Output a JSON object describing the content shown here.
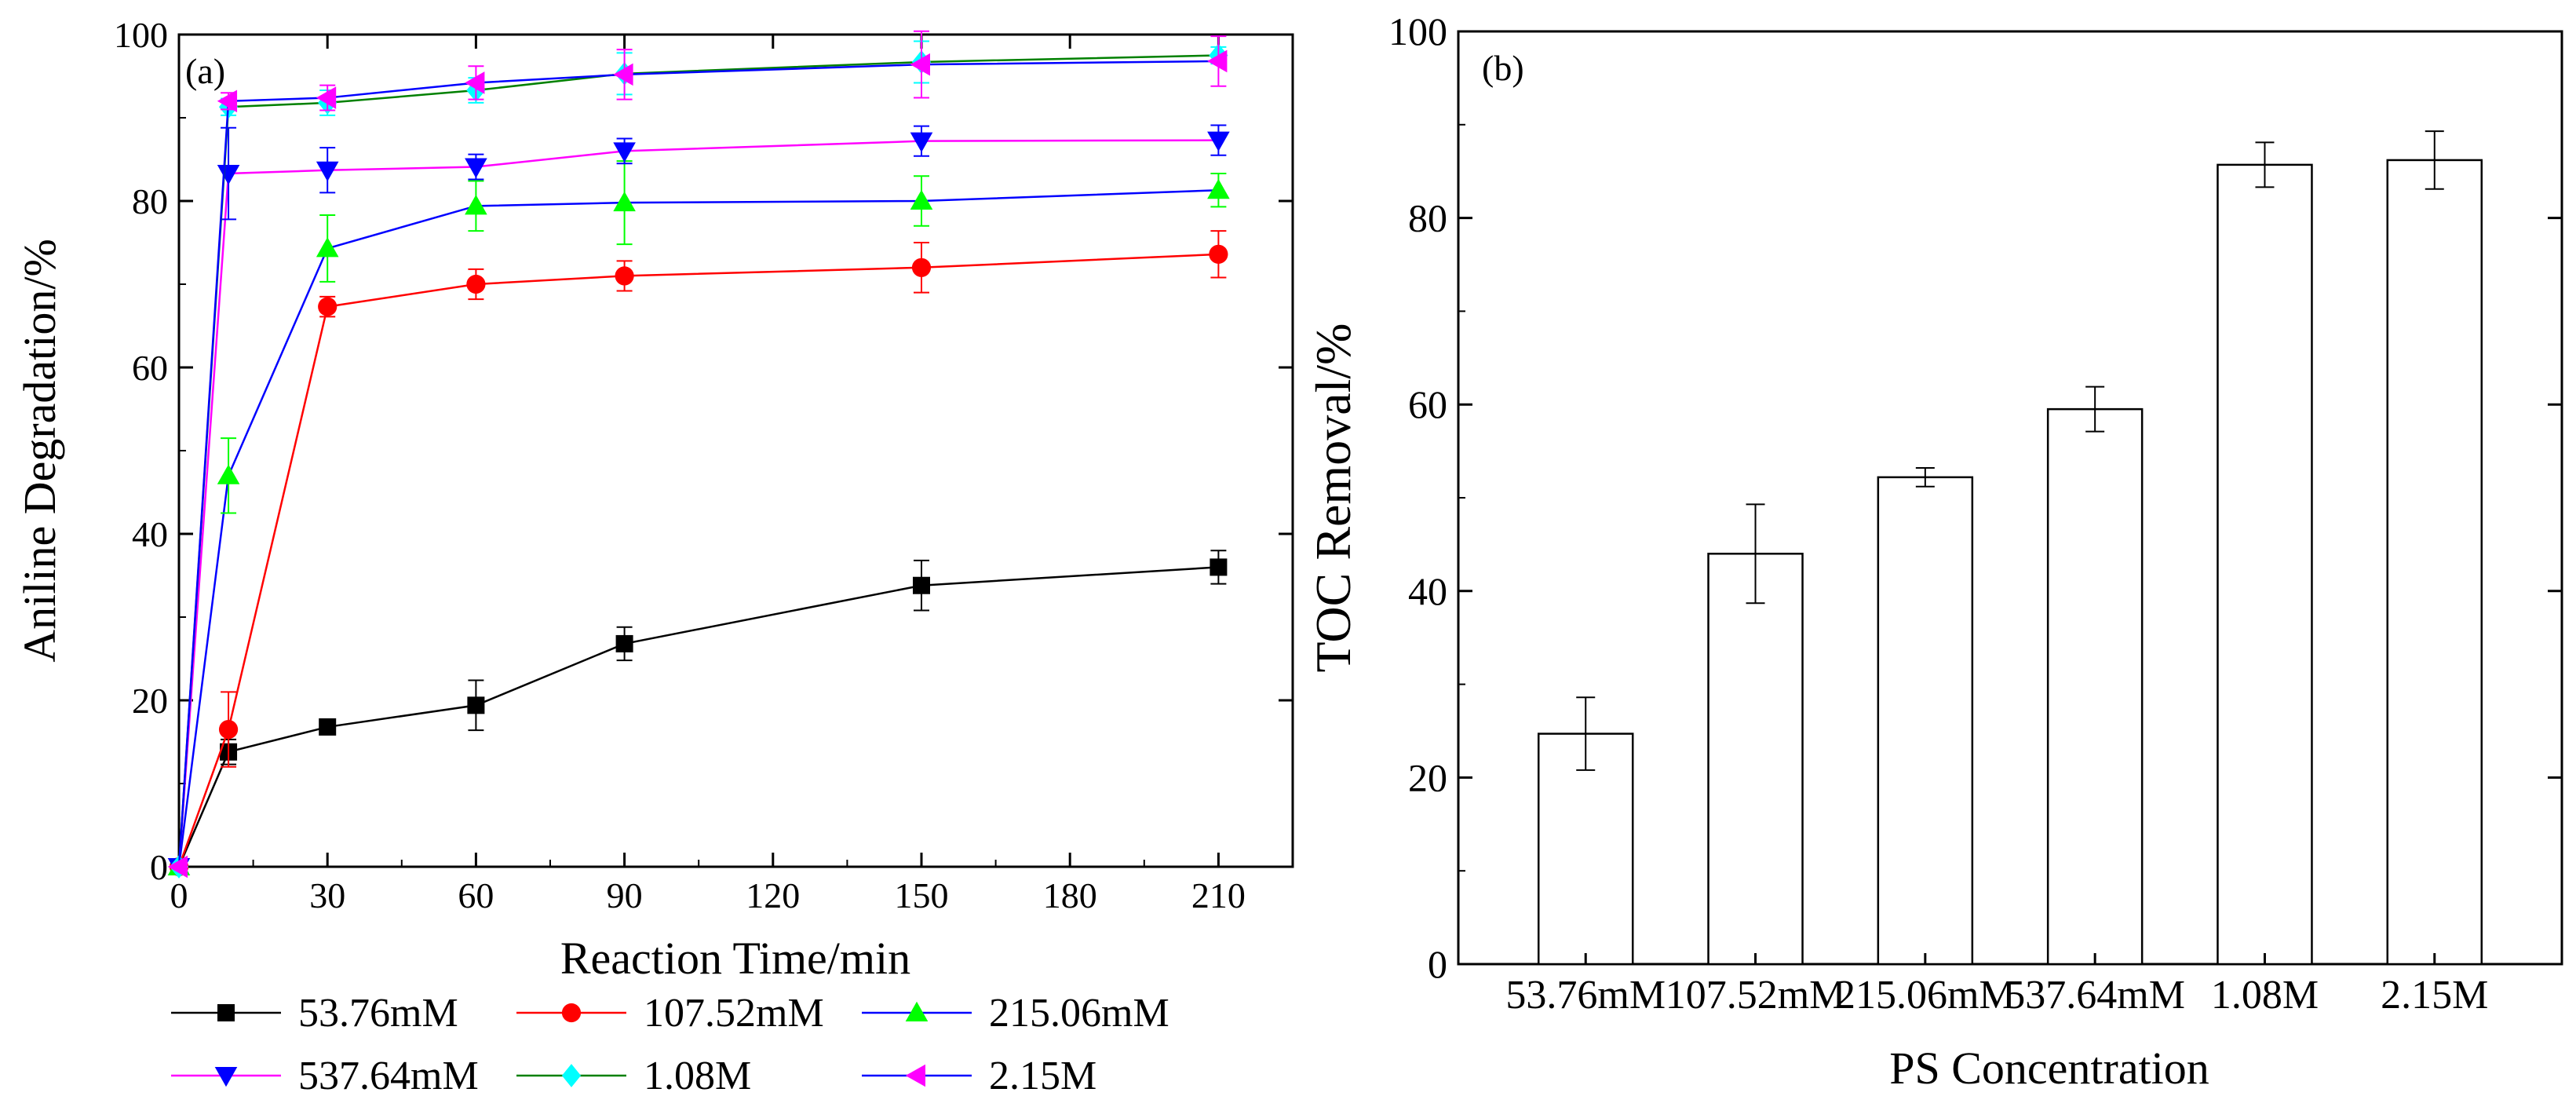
{
  "chart_data": [
    {
      "panel_label": "(a)",
      "type": "line",
      "xlabel": "Reaction Time/min",
      "ylabel": "Aniline Degradation/%",
      "xlim": [
        0,
        225
      ],
      "ylim": [
        0,
        100
      ],
      "x_ticks": [
        0,
        30,
        60,
        90,
        120,
        150,
        180,
        210
      ],
      "y_ticks": [
        0,
        20,
        40,
        60,
        80,
        100
      ],
      "x": [
        0,
        10,
        30,
        60,
        90,
        150,
        210
      ],
      "legend_location": "below",
      "series": [
        {
          "name": "53.76mM",
          "marker": "square",
          "marker_color": "#000000",
          "line_color": "#000000",
          "values": [
            0,
            13.8,
            16.8,
            19.4,
            26.8,
            33.8,
            36.0
          ],
          "errors": [
            0,
            1.5,
            0.8,
            3.0,
            2.0,
            3.0,
            2.0
          ]
        },
        {
          "name": "107.52mM",
          "marker": "circle",
          "marker_color": "#ff0000",
          "line_color": "#ff0000",
          "values": [
            0,
            16.5,
            67.3,
            70.0,
            71.0,
            72.0,
            73.6
          ],
          "errors": [
            0,
            4.5,
            1.2,
            1.8,
            1.8,
            3.0,
            2.8
          ]
        },
        {
          "name": "215.06mM",
          "marker": "triangle-up",
          "marker_color": "#00ff00",
          "line_color": "#0000ff",
          "values": [
            0,
            47.0,
            74.3,
            79.4,
            79.8,
            80.0,
            81.3
          ],
          "errors": [
            0,
            4.5,
            4.0,
            3.0,
            5.0,
            3.0,
            2.0
          ]
        },
        {
          "name": "537.64mM",
          "marker": "triangle-down",
          "marker_color": "#0000ff",
          "line_color": "#ff00ff",
          "values": [
            0,
            83.3,
            83.7,
            84.1,
            86.0,
            87.2,
            87.3
          ],
          "errors": [
            0,
            5.5,
            2.7,
            1.5,
            1.5,
            1.8,
            1.8
          ]
        },
        {
          "name": "1.08M",
          "marker": "diamond",
          "marker_color": "#00ffff",
          "line_color": "#008000",
          "values": [
            0,
            91.3,
            91.8,
            93.3,
            95.3,
            96.7,
            97.5
          ],
          "errors": [
            0,
            1.0,
            1.5,
            1.5,
            2.5,
            2.5,
            1.0
          ]
        },
        {
          "name": "2.15M",
          "marker": "triangle-left",
          "marker_color": "#ff00ff",
          "line_color": "#0000ff",
          "values": [
            0,
            92.0,
            92.4,
            94.2,
            95.2,
            96.4,
            96.8
          ],
          "errors": [
            0,
            1.0,
            1.5,
            2.0,
            3.0,
            4.0,
            3.0
          ]
        }
      ]
    },
    {
      "panel_label": "(b)",
      "type": "bar",
      "xlabel": "PS Concentration",
      "ylabel": "TOC Removal/%",
      "ylim": [
        0,
        100
      ],
      "y_ticks": [
        0,
        20,
        40,
        60,
        80,
        100
      ],
      "categories": [
        "53.76mM",
        "107.52mM",
        "215.06mM",
        "537.64mM",
        "1.08M",
        "2.15M"
      ],
      "values": [
        24.7,
        44.0,
        52.2,
        59.5,
        85.7,
        86.2
      ],
      "errors": [
        3.9,
        5.3,
        1.0,
        2.4,
        2.4,
        3.1
      ],
      "bar_fill": "#ffffff",
      "bar_edge": "#000000"
    }
  ]
}
